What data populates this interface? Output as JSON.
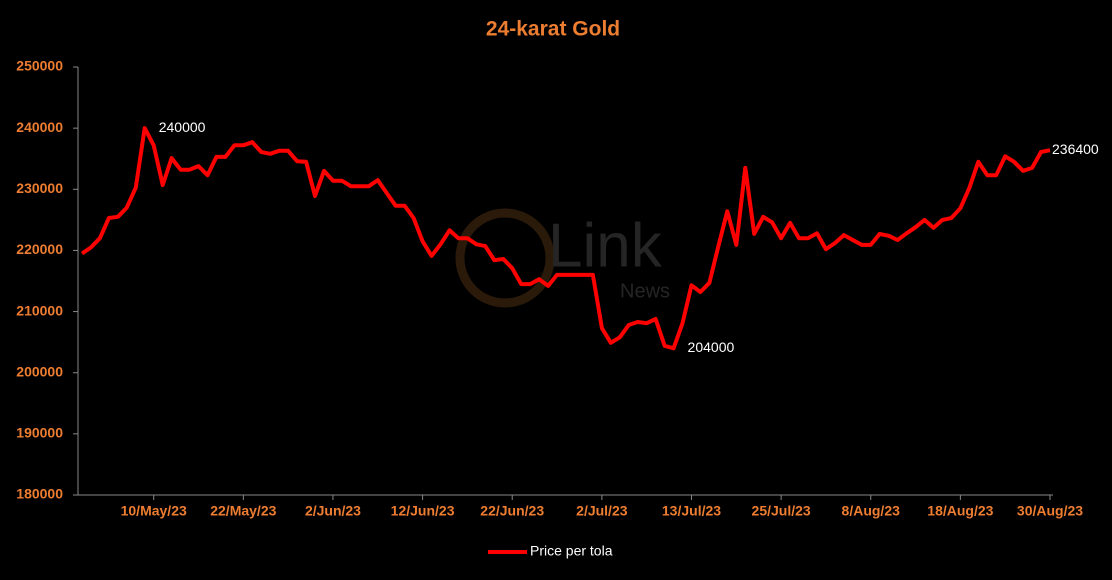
{
  "chart_data": {
    "type": "line",
    "title": "24-karat Gold",
    "categories": [
      null,
      null,
      null,
      null,
      null,
      null,
      null,
      null,
      "10/May/23",
      null,
      null,
      null,
      null,
      null,
      null,
      null,
      null,
      null,
      "22/May/23",
      null,
      null,
      null,
      null,
      null,
      null,
      null,
      null,
      null,
      "2/Jun/23",
      null,
      null,
      null,
      null,
      null,
      null,
      null,
      null,
      null,
      "12/Jun/23",
      null,
      null,
      null,
      null,
      null,
      null,
      null,
      null,
      null,
      "22/Jun/23",
      null,
      null,
      null,
      null,
      null,
      null,
      null,
      null,
      null,
      "2/Jul/23",
      null,
      null,
      null,
      null,
      null,
      null,
      null,
      null,
      null,
      "13/Jul/23",
      null,
      null,
      null,
      null,
      null,
      null,
      null,
      null,
      null,
      "25/Jul/23",
      null,
      null,
      null,
      null,
      null,
      null,
      null,
      null,
      null,
      "8/Aug/23",
      null,
      null,
      null,
      null,
      null,
      null,
      null,
      null,
      null,
      "18/Aug/23",
      null,
      null,
      null,
      null,
      null,
      null,
      null,
      null,
      null,
      "30/Aug/23"
    ],
    "series": [
      {
        "name": "Price per tola",
        "color": "#ff0000",
        "values": [
          219500,
          220500,
          222000,
          225300,
          225500,
          227000,
          230300,
          240000,
          237200,
          230700,
          235100,
          233200,
          233200,
          233800,
          232300,
          235300,
          235300,
          237200,
          237200,
          237700,
          236100,
          235800,
          236300,
          236300,
          234600,
          234500,
          228900,
          233000,
          231400,
          231400,
          230500,
          230500,
          230500,
          231500,
          229400,
          227300,
          227300,
          225300,
          221500,
          219100,
          221000,
          223300,
          222000,
          222000,
          221000,
          220700,
          218400,
          218600,
          217100,
          214500,
          214500,
          215300,
          214200,
          216000,
          216000,
          216000,
          216000,
          216000,
          207300,
          204900,
          205800,
          207800,
          208300,
          208100,
          208800,
          204400,
          204000,
          208100,
          214300,
          213200,
          214700,
          220700,
          226400,
          220900,
          233500,
          222700,
          225500,
          224600,
          222000,
          224500,
          222000,
          222000,
          222800,
          220200,
          221200,
          222500,
          221700,
          220900,
          220900,
          222700,
          222400,
          221700,
          222800,
          223800,
          225000,
          223700,
          225000,
          225300,
          226900,
          230200,
          234500,
          232300,
          232300,
          235400,
          234500,
          233000,
          233500,
          236100,
          236400
        ],
        "value_labels": [
          null,
          null,
          null,
          null,
          null,
          null,
          null,
          "240000",
          null,
          null,
          null,
          null,
          null,
          null,
          null,
          null,
          null,
          null,
          null,
          null,
          null,
          null,
          null,
          null,
          null,
          null,
          null,
          null,
          null,
          null,
          null,
          null,
          null,
          null,
          null,
          null,
          null,
          null,
          null,
          null,
          null,
          null,
          null,
          null,
          null,
          null,
          null,
          null,
          null,
          null,
          null,
          null,
          null,
          null,
          null,
          null,
          null,
          null,
          null,
          null,
          null,
          null,
          null,
          null,
          null,
          null,
          "204000",
          null,
          null,
          null,
          null,
          null,
          null,
          null,
          null,
          null,
          null,
          null,
          null,
          null,
          null,
          null,
          null,
          null,
          null,
          null,
          null,
          null,
          null,
          null,
          null,
          null,
          null,
          null,
          null,
          null,
          null,
          null,
          null,
          null,
          null,
          null,
          null,
          null,
          null,
          null,
          null,
          null,
          "236400"
        ]
      }
    ],
    "ylim": [
      180000,
      250000
    ],
    "yticks": [
      180000,
      190000,
      200000,
      210000,
      220000,
      230000,
      240000,
      250000
    ],
    "legend": "bottom",
    "watermark": {
      "text": "Link",
      "subtext": "News"
    }
  }
}
